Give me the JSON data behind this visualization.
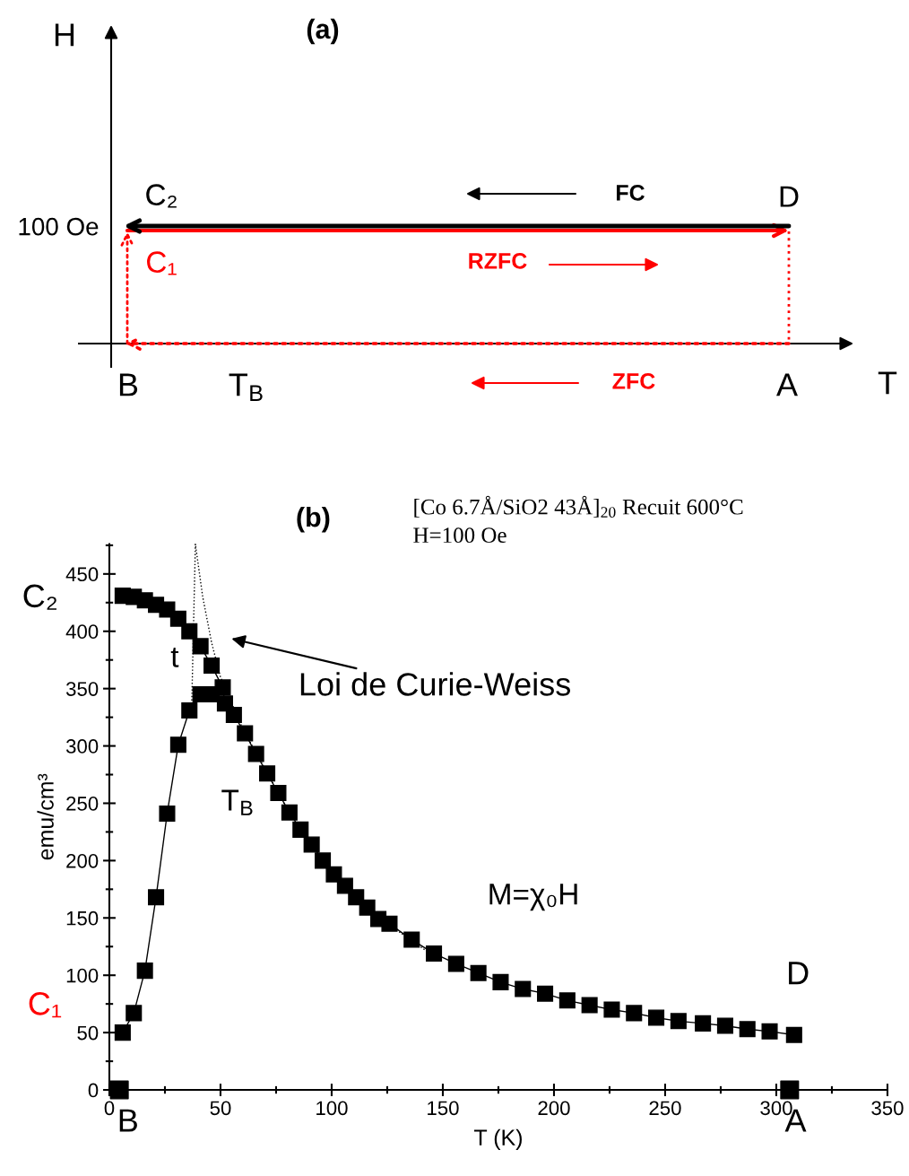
{
  "chart_data": [
    {
      "type": "other",
      "title": "(a)",
      "annotations": [
        "H",
        "T",
        "100 Oe",
        "C₂",
        "C₁",
        "D",
        "B",
        "A",
        "T$_{B}$",
        "FC",
        "RZFC",
        "ZFC"
      ]
    },
    {
      "type": "line",
      "title": "(b)",
      "subtitle": "[Co 6.7Å/SiO2 43Å]$_{20}$ Recuit 600°C\nH=100 Oe",
      "xlabel": "T (K)",
      "ylabel": "emu/cm³",
      "xlim": [
        0,
        350
      ],
      "xticks": [
        0,
        50,
        100,
        150,
        200,
        250,
        300,
        350
      ],
      "ylim": [
        0,
        476
      ],
      "yticks": [
        0,
        50,
        100,
        150,
        200,
        250,
        300,
        350,
        400,
        450
      ],
      "grid": false,
      "legend": false,
      "series": [
        {
          "color": "#000000",
          "marker": "square",
          "line_style": "solid",
          "x": [
            6,
            11,
            16,
            21,
            26,
            31,
            36,
            41,
            46,
            51,
            52,
            56,
            61,
            66,
            71,
            76,
            81,
            86,
            91,
            96,
            101,
            106,
            111,
            116,
            121,
            126,
            136,
            146,
            156,
            166,
            176,
            186,
            196,
            206,
            216,
            226,
            236,
            246,
            256,
            267,
            277,
            287,
            297,
            308
          ],
          "values": [
            431,
            430,
            427,
            423,
            419,
            411,
            400,
            387,
            370,
            351,
            337,
            327,
            311,
            293,
            276,
            259,
            242,
            227,
            214,
            200,
            188,
            178,
            168,
            159,
            149,
            145,
            131,
            119,
            110,
            102,
            94,
            88,
            84,
            78,
            74,
            70,
            67,
            63,
            60,
            58,
            56,
            53,
            51,
            48
          ]
        },
        {
          "color": "#000000",
          "marker": "square",
          "line_style": "solid",
          "x": [
            6,
            11,
            16,
            21,
            26,
            31,
            36,
            41,
            46
          ],
          "values": [
            50,
            67,
            104,
            168,
            241,
            301,
            331,
            345,
            345
          ]
        },
        {
          "type": "scatter",
          "color": "#000000",
          "marker": "square",
          "x": [
            4.5,
            306
          ],
          "values": [
            0,
            0
          ]
        },
        {
          "color": "#000000",
          "marker": "none",
          "line_style": "dotted",
          "x": [
            37,
            38.7,
            42,
            46,
            50,
            60,
            80,
            100,
            120,
            145
          ],
          "values": [
            331,
            476,
            430,
            390,
            360,
            315,
            245,
            190,
            152,
            118
          ]
        }
      ],
      "annotations": [
        "Loi de Curie-Weiss",
        "C₂",
        "C₁",
        "t",
        "T$_{B}$",
        "M=χ₀H",
        "D",
        "B",
        "A"
      ]
    }
  ]
}
